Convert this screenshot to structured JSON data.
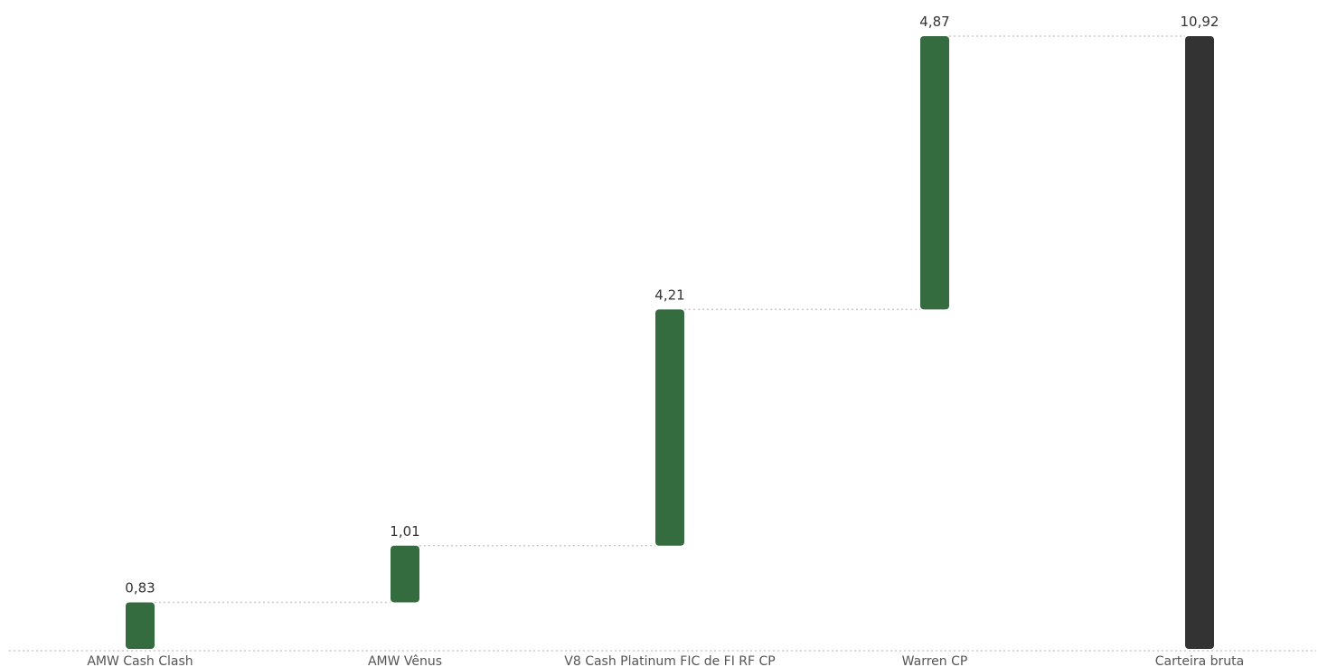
{
  "chart_data": {
    "type": "bar",
    "subtype": "waterfall",
    "categories": [
      "AMW Cash Clash",
      "AMW Vênus",
      "V8 Cash Platinum FIC de FI RF CP",
      "Warren CP",
      "Carteira bruta"
    ],
    "values": [
      0.83,
      1.01,
      4.21,
      4.87,
      10.92
    ],
    "value_labels": [
      "0,83",
      "1,01",
      "4,21",
      "4,87",
      "10,92"
    ],
    "is_total": [
      false,
      false,
      false,
      false,
      true
    ],
    "title": "",
    "xlabel": "",
    "ylabel": "",
    "ylim": [
      0,
      10.92
    ],
    "grid": false,
    "legend": "none",
    "colors": {
      "increment": "#346b3f",
      "total": "#333333",
      "connector": "#cccccc",
      "baseline": "#cccccc"
    }
  }
}
